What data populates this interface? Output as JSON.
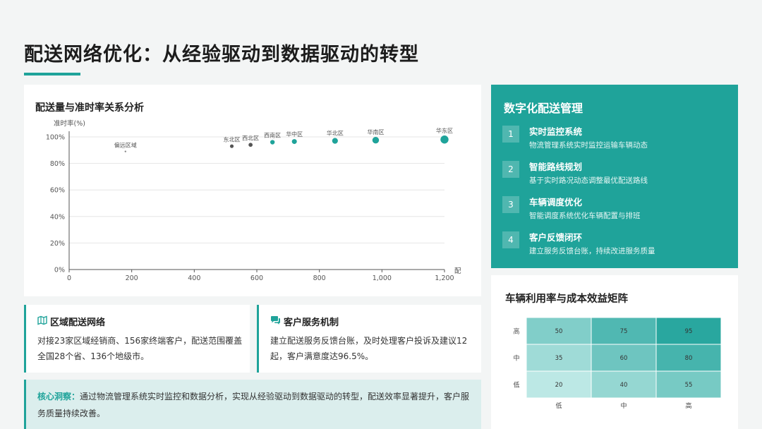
{
  "page": {
    "title": "配送网络优化：从经验驱动到数据驱动的转型"
  },
  "scatter": {
    "title": "配送量与准时率关系分析",
    "chart_data": {
      "type": "scatter",
      "title": "配送量与准时率关系分析",
      "ylabel": "准时率(%)",
      "xlabel": "配",
      "xlim": [
        0,
        1200
      ],
      "ylim": [
        0,
        100
      ],
      "x_ticks": [
        "0",
        "200",
        "400",
        "600",
        "800",
        "1,000",
        "1,200"
      ],
      "y_ticks": [
        "0%",
        "20%",
        "40%",
        "60%",
        "80%",
        "100%"
      ],
      "points": [
        {
          "label": "偏远区域",
          "x": 180,
          "y": 89,
          "color": "#888888"
        },
        {
          "label": "东北区",
          "x": 520,
          "y": 93,
          "color": "#555555"
        },
        {
          "label": "西北区",
          "x": 580,
          "y": 94,
          "color": "#555555"
        },
        {
          "label": "西南区",
          "x": 650,
          "y": 96,
          "color": "#1fa39a"
        },
        {
          "label": "华中区",
          "x": 720,
          "y": 96.5,
          "color": "#1fa39a"
        },
        {
          "label": "华北区",
          "x": 850,
          "y": 97,
          "color": "#1fa39a"
        },
        {
          "label": "华南区",
          "x": 980,
          "y": 97.5,
          "color": "#1fa39a"
        },
        {
          "label": "华东区",
          "x": 1200,
          "y": 98,
          "color": "#1fa39a"
        }
      ]
    }
  },
  "digital": {
    "title": "数字化配送管理",
    "items": [
      {
        "num": "1",
        "name": "实时监控系统",
        "desc": "物流管理系统实时监控运输车辆动态"
      },
      {
        "num": "2",
        "name": "智能路线规划",
        "desc": "基于实时路况动态调整最优配送路线"
      },
      {
        "num": "3",
        "name": "车辆调度优化",
        "desc": "智能调度系统优化车辆配置与排班"
      },
      {
        "num": "4",
        "name": "客户反馈闭环",
        "desc": "建立服务反馈台账，持续改进服务质量"
      }
    ]
  },
  "heatmap": {
    "title": "车辆利用率与成本效益矩阵",
    "chart_data": {
      "type": "heatmap",
      "title": "车辆利用率与成本效益矩阵",
      "rows": [
        "高",
        "中",
        "低"
      ],
      "cols": [
        "低",
        "中",
        "高"
      ],
      "values": [
        [
          50,
          75,
          95
        ],
        [
          35,
          60,
          80
        ],
        [
          20,
          40,
          55
        ]
      ],
      "color_low": "#c6ecea",
      "color_high": "#1fa39a"
    }
  },
  "cards": [
    {
      "title": "区域配送网络",
      "icon": "map-icon",
      "body": "对接23家区域经销商、156家终端客户，配送范围覆盖全国28个省、136个地级市。"
    },
    {
      "title": "客户服务机制",
      "icon": "chat-icon",
      "body": "建立配送服务反馈台账，及时处理客户投诉及建议12起，客户满意度达96.5%。"
    }
  ],
  "insight": {
    "label": "核心洞察：",
    "text": "通过物流管理系统实时监控和数据分析，实现从经验驱动到数据驱动的转型，配送效率显著提升，客户服务质量持续改善。"
  }
}
